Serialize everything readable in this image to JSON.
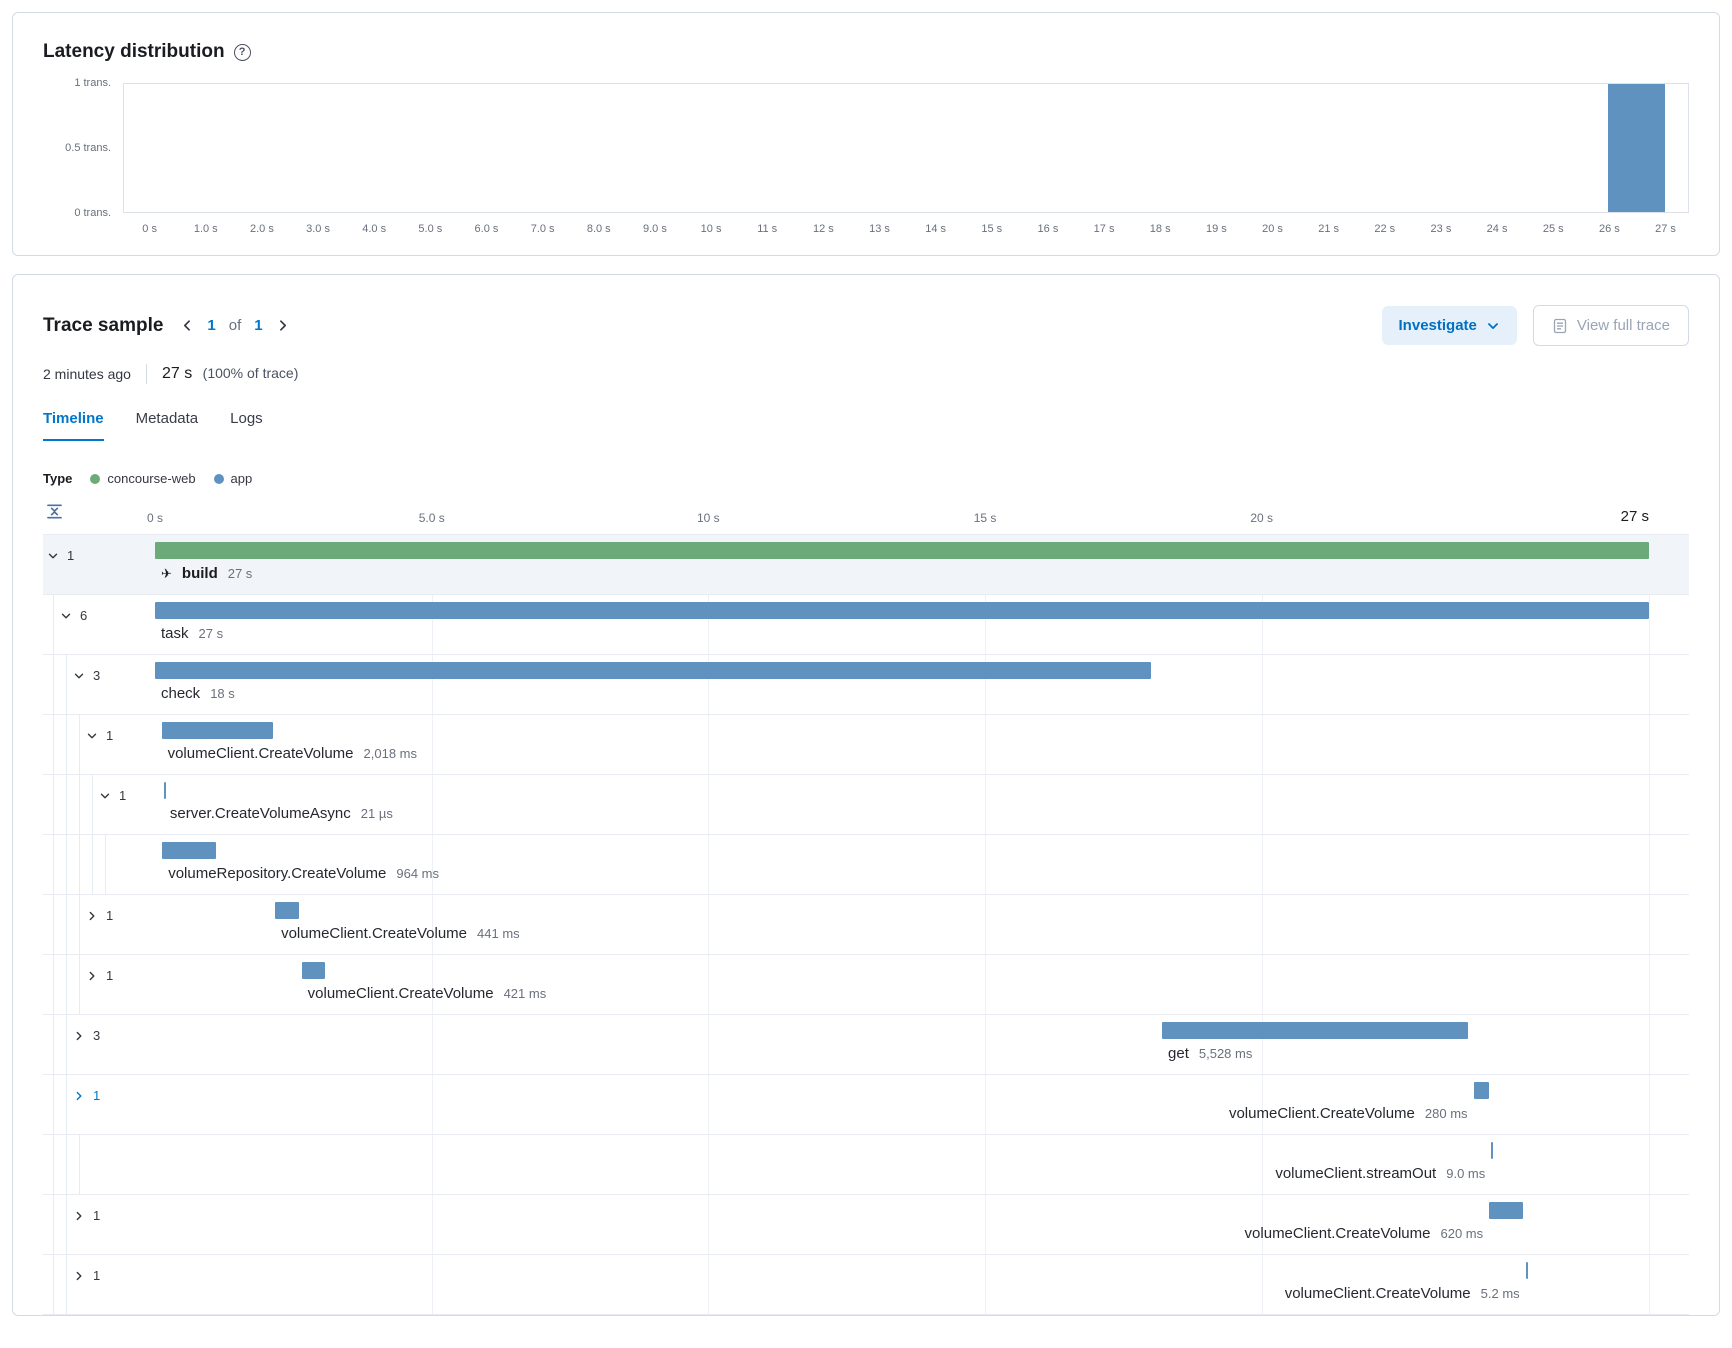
{
  "colors": {
    "green": "#6cab79",
    "blue": "#6092c0",
    "accent": "#0077cc"
  },
  "icons": {
    "help_glyph": "?",
    "span_glyph": "✈"
  },
  "chart_data": {
    "type": "bar",
    "title": "Latency distribution",
    "y_ticks": [
      "1 trans.",
      "0.5 trans.",
      "0 trans."
    ],
    "x_ticks": [
      "0 s",
      "1.0 s",
      "2.0 s",
      "3.0 s",
      "4.0 s",
      "5.0 s",
      "6.0 s",
      "7.0 s",
      "8.0 s",
      "9.0 s",
      "10 s",
      "11 s",
      "12 s",
      "13 s",
      "14 s",
      "15 s",
      "16 s",
      "17 s",
      "18 s",
      "19 s",
      "20 s",
      "21 s",
      "22 s",
      "23 s",
      "24 s",
      "25 s",
      "26 s",
      "27 s"
    ],
    "xlim_s": [
      0,
      27
    ],
    "ylim": [
      0,
      1
    ],
    "legend_position": "none",
    "grid": false,
    "bars": [
      {
        "start_s": 26,
        "end_s": 27,
        "value_trans": 1
      }
    ]
  },
  "trace": {
    "title": "Trace sample",
    "pagination": {
      "current": "1",
      "of": "of",
      "total": "1"
    },
    "buttons": {
      "investigate": "Investigate",
      "view_full_trace": "View full trace"
    },
    "timestamp": "2 minutes ago",
    "duration": "27 s",
    "duration_note": "(100% of trace)",
    "tabs": [
      {
        "label": "Timeline",
        "active": true
      },
      {
        "label": "Metadata",
        "active": false
      },
      {
        "label": "Logs",
        "active": false
      }
    ],
    "legend": {
      "label": "Type",
      "items": [
        {
          "name": "concourse-web",
          "color": "#6cab79"
        },
        {
          "name": "app",
          "color": "#6092c0"
        }
      ]
    },
    "waterfall": {
      "duration_s": 27,
      "axis_ticks": [
        {
          "t": 0,
          "label": "0 s"
        },
        {
          "t": 5,
          "label": "5.0 s"
        },
        {
          "t": 10,
          "label": "10 s"
        },
        {
          "t": 15,
          "label": "15 s"
        },
        {
          "t": 20,
          "label": "20 s"
        },
        {
          "t": 27,
          "label": "27 s",
          "end": true
        }
      ],
      "gridlines_t": [
        5,
        10,
        15,
        20,
        27
      ],
      "rows": [
        {
          "depth": 0,
          "toggle": "down",
          "count": "1",
          "name": "build",
          "duration": "27 s",
          "start_s": 0,
          "dur_s": 27,
          "color": "green",
          "selected": true,
          "bold": true,
          "icon": true,
          "label": "left"
        },
        {
          "depth": 1,
          "toggle": "down",
          "count": "6",
          "name": "task",
          "duration": "27 s",
          "start_s": 0,
          "dur_s": 27,
          "color": "blue",
          "label": "left"
        },
        {
          "depth": 2,
          "toggle": "down",
          "count": "3",
          "name": "check",
          "duration": "18 s",
          "start_s": 0,
          "dur_s": 18,
          "color": "blue",
          "label": "left"
        },
        {
          "depth": 3,
          "toggle": "down",
          "count": "1",
          "name": "volumeClient.CreateVolume",
          "duration": "2,018 ms",
          "start_s": 0.12,
          "dur_s": 2.018,
          "color": "blue",
          "label": "left"
        },
        {
          "depth": 4,
          "toggle": "down",
          "count": "1",
          "name": "server.CreateVolumeAsync",
          "duration": "21 µs",
          "start_s": 0.16,
          "dur_s": 0.021,
          "color": "blue",
          "label": "left"
        },
        {
          "depth": 5,
          "toggle": null,
          "count": null,
          "name": "volumeRepository.CreateVolume",
          "duration": "964 ms",
          "start_s": 0.13,
          "dur_s": 0.964,
          "color": "blue",
          "label": "left"
        },
        {
          "depth": 3,
          "toggle": "right",
          "count": "1",
          "name": "volumeClient.CreateVolume",
          "duration": "441 ms",
          "start_s": 2.17,
          "dur_s": 0.441,
          "color": "blue",
          "label": "left"
        },
        {
          "depth": 3,
          "toggle": "right",
          "count": "1",
          "name": "volumeClient.CreateVolume",
          "duration": "421 ms",
          "start_s": 2.65,
          "dur_s": 0.421,
          "color": "blue",
          "label": "left"
        },
        {
          "depth": 2,
          "toggle": "right",
          "count": "3",
          "name": "get",
          "duration": "5,528 ms",
          "start_s": 18.2,
          "dur_s": 5.528,
          "color": "blue",
          "label": "left"
        },
        {
          "depth": 2,
          "toggle": "right",
          "count": "1",
          "name": "volumeClient.CreateVolume",
          "duration": "280 ms",
          "start_s": 23.83,
          "dur_s": 0.28,
          "color": "blue",
          "label": "before",
          "accent": true
        },
        {
          "depth": 3,
          "toggle": null,
          "count": null,
          "name": "volumeClient.streamOut",
          "duration": "9.0 ms",
          "start_s": 24.15,
          "dur_s": 0.009,
          "color": "blue",
          "label": "before"
        },
        {
          "depth": 2,
          "toggle": "right",
          "count": "1",
          "name": "volumeClient.CreateVolume",
          "duration": "620 ms",
          "start_s": 24.11,
          "dur_s": 0.62,
          "color": "blue",
          "label": "before"
        },
        {
          "depth": 2,
          "toggle": "right",
          "count": "1",
          "name": "volumeClient.CreateVolume",
          "duration": "5.2 ms",
          "start_s": 24.77,
          "dur_s": 0.0052,
          "color": "blue",
          "label": "before"
        }
      ]
    }
  }
}
